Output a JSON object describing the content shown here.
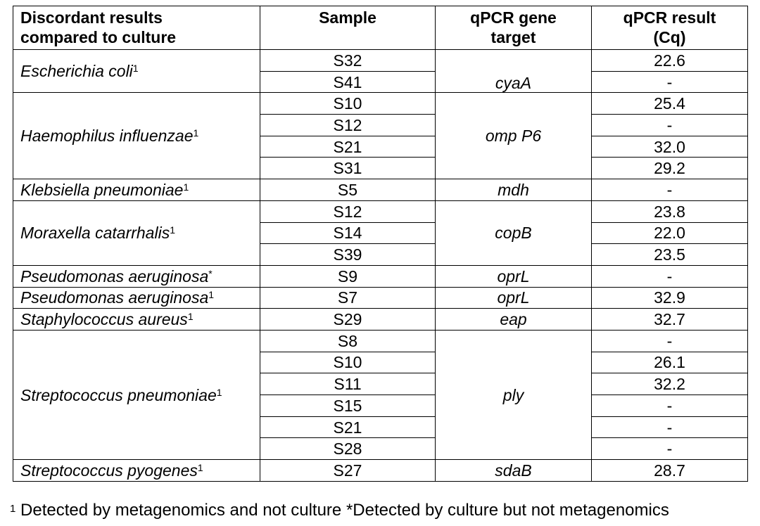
{
  "headers": {
    "organism": [
      "Discordant results",
      "compared to culture"
    ],
    "sample": "Sample",
    "gene": [
      "qPCR gene",
      "target"
    ],
    "result": [
      "qPCR result",
      "(Cq)"
    ]
  },
  "groups": [
    {
      "organism": "Escherichia coli",
      "mark": "1",
      "gene": "cyaA",
      "gene_align": "bottom",
      "rows": [
        {
          "sample": "S32",
          "cq": "22.6"
        },
        {
          "sample": "S41",
          "cq": "-"
        }
      ]
    },
    {
      "organism": "Haemophilus influenzae",
      "mark": "1",
      "gene": "omp P6",
      "gene_align": "middle",
      "rows": [
        {
          "sample": "S10",
          "cq": "25.4"
        },
        {
          "sample": "S12",
          "cq": "-"
        },
        {
          "sample": "S21",
          "cq": "32.0"
        },
        {
          "sample": "S31",
          "cq": "29.2"
        }
      ]
    },
    {
      "organism": "Klebsiella pneumoniae",
      "mark": "1",
      "gene": "mdh",
      "gene_align": "middle",
      "rows": [
        {
          "sample": "S5",
          "cq": "-"
        }
      ]
    },
    {
      "organism": "Moraxella catarrhalis",
      "mark": "1",
      "gene": "copB",
      "gene_align": "middle",
      "rows": [
        {
          "sample": "S12",
          "cq": "23.8"
        },
        {
          "sample": "S14",
          "cq": "22.0"
        },
        {
          "sample": "S39",
          "cq": "23.5"
        }
      ]
    },
    {
      "organism": "Pseudomonas aeruginosa",
      "mark": "*",
      "gene": "oprL",
      "gene_align": "middle",
      "rows": [
        {
          "sample": "S9",
          "cq": "-"
        }
      ]
    },
    {
      "organism": "Pseudomonas aeruginosa",
      "mark": "1",
      "gene": "oprL",
      "gene_align": "middle",
      "rows": [
        {
          "sample": "S7",
          "cq": "32.9"
        }
      ]
    },
    {
      "organism": "Staphylococcus aureus",
      "mark": "1",
      "gene": "eap",
      "gene_align": "middle",
      "rows": [
        {
          "sample": "S29",
          "cq": "32.7"
        }
      ]
    },
    {
      "organism": "Streptococcus pneumoniae",
      "mark": "1",
      "gene": "ply",
      "gene_align": "middle",
      "rows": [
        {
          "sample": "S8",
          "cq": "-"
        },
        {
          "sample": "S10",
          "cq": "26.1"
        },
        {
          "sample": "S11",
          "cq": "32.2"
        },
        {
          "sample": "S15",
          "cq": "-"
        },
        {
          "sample": "S21",
          "cq": "-"
        },
        {
          "sample": "S28",
          "cq": "-"
        }
      ]
    },
    {
      "organism": "Streptococcus pyogenes",
      "mark": "1",
      "gene": "sdaB",
      "gene_align": "middle",
      "rows": [
        {
          "sample": "S27",
          "cq": "28.7"
        }
      ]
    }
  ],
  "footnote": {
    "mark": "1",
    "text": " Detected by metagenomics and not culture *Detected by culture but not metagenomics"
  }
}
